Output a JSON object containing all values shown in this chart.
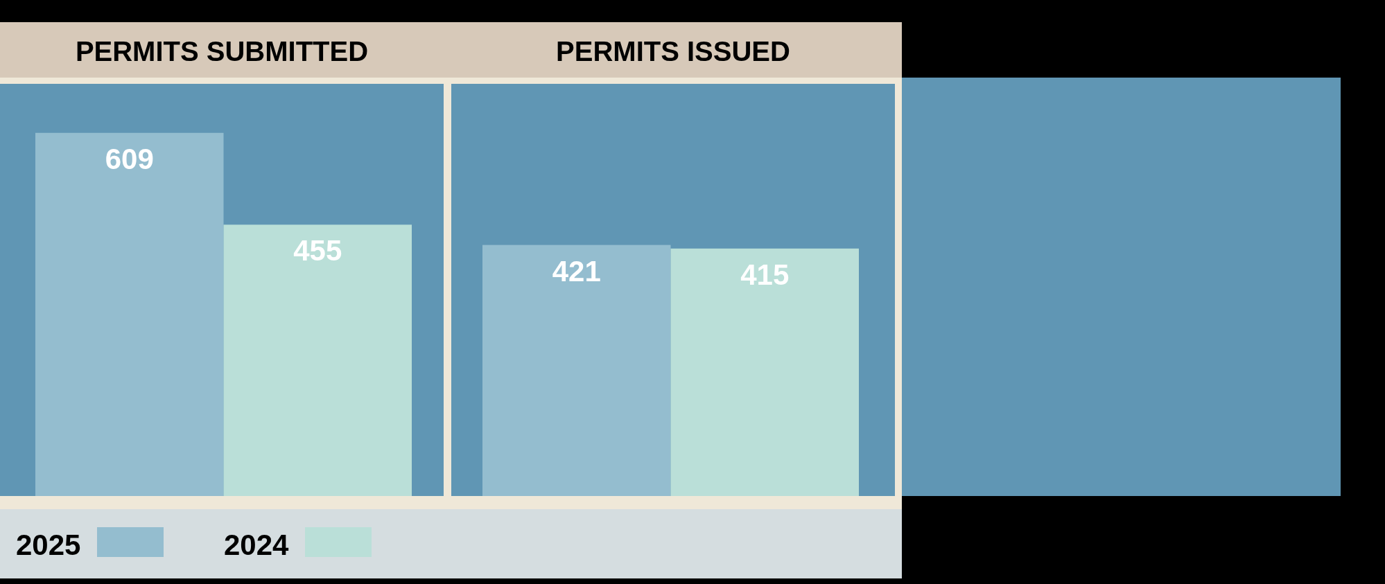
{
  "chart_data": {
    "type": "bar",
    "categories": [
      "PERMITS SUBMITTED",
      "PERMITS ISSUED"
    ],
    "series": [
      {
        "name": "2025",
        "color": "#94bdcf",
        "values": [
          609,
          421
        ]
      },
      {
        "name": "2024",
        "color": "#badfd8",
        "values": [
          455,
          415
        ]
      }
    ],
    "data_labels": true,
    "legend": "bottom left"
  }
}
